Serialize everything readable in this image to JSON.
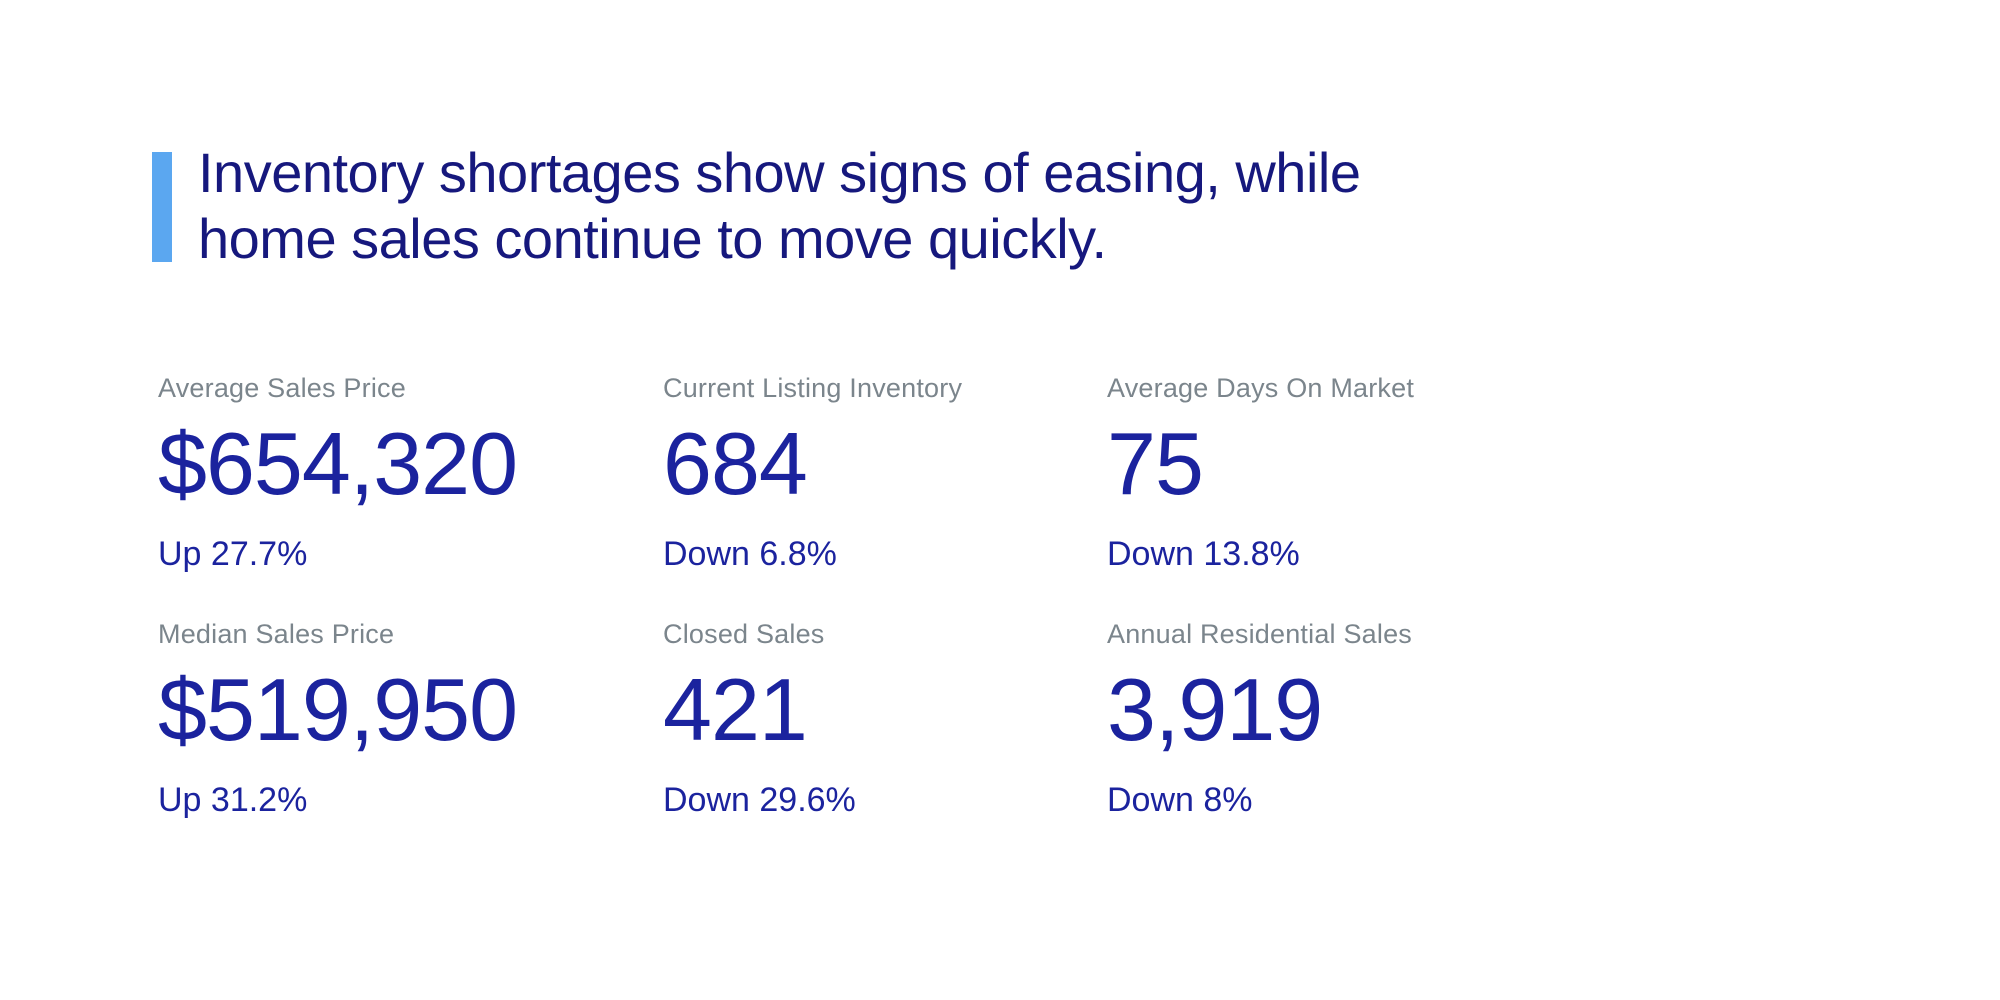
{
  "page": {
    "background_color": "#ffffff",
    "accent_color": "#5ba7f0",
    "headline_color": "#16187d",
    "value_color": "#1b239e",
    "label_color": "#7b858c"
  },
  "headline": {
    "line1": "Inventory shortages show signs of easing, while",
    "line2": "home sales continue to move quickly."
  },
  "stats": [
    {
      "label": "Average Sales Price",
      "value": "$654,320",
      "change": "Up 27.7%"
    },
    {
      "label": "Current Listing Inventory",
      "value": "684",
      "change": "Down 6.8%"
    },
    {
      "label": "Average Days On Market",
      "value": "75",
      "change": "Down 13.8%"
    },
    {
      "label": "Median Sales Price",
      "value": "$519,950",
      "change": "Up 31.2%"
    },
    {
      "label": "Closed Sales",
      "value": "421",
      "change": "Down 29.6%"
    },
    {
      "label": "Annual Residential Sales",
      "value": "3,919",
      "change": "Down 8%"
    }
  ]
}
